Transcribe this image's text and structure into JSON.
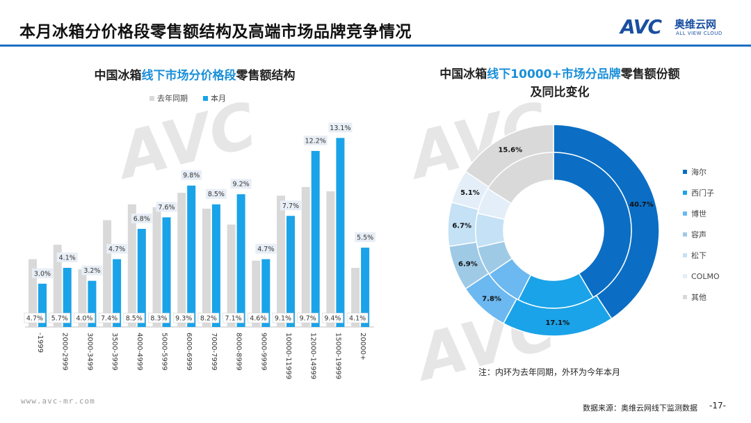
{
  "header": {
    "title": "本月冰箱分价格段零售额结构及高端市场品牌竞争情况",
    "logo_mark": "AVC",
    "logo_cn": "奥维云网",
    "logo_en": "ALL VIEW CLOUD"
  },
  "left_chart": {
    "title_pre": "中国冰箱",
    "title_hl": "线下市场分价格段",
    "title_post": "零售额结构"
  },
  "right_chart": {
    "title_pre": "中国冰箱",
    "title_hl": "线下10000+市场分品牌",
    "title_post": "零售额份额",
    "title_line2": "及同比变化"
  },
  "note": "注：内环为去年同期，外环为今年本月",
  "footer": {
    "url": "www.avc-mr.com",
    "source": "数据来源：奥维云网线下监测数据",
    "page": "-17-"
  },
  "colors": {
    "accent": "#1a6fc4",
    "bar_last_year": "#d9d9d9",
    "bar_this_month": "#1aa3e8"
  },
  "chart_data": [
    {
      "type": "bar",
      "categories": [
        "-1999",
        "2000-2999",
        "3000-3499",
        "3500-3999",
        "4000-4999",
        "5000-5999",
        "6000-6999",
        "7000-7999",
        "8000-8999",
        "9000-9999",
        "10000-11999",
        "12000-14999",
        "15000-19999",
        "20000+"
      ],
      "series": [
        {
          "name": "去年同期",
          "values": [
            4.7,
            5.7,
            4.0,
            7.4,
            8.5,
            8.3,
            9.3,
            8.2,
            7.1,
            4.6,
            9.1,
            9.7,
            9.4,
            4.1
          ],
          "labels": [
            "4.7%",
            "5.7%",
            "4.0%",
            "7.4%",
            "8.5%",
            "8.3%",
            "9.3%",
            "8.2%",
            "7.1%",
            "4.6%",
            "9.1%",
            "9.7%",
            "9.4%",
            "4.1%"
          ],
          "color": "#d9d9d9"
        },
        {
          "name": "本月",
          "values": [
            3.0,
            4.1,
            3.2,
            4.7,
            6.8,
            7.6,
            9.8,
            8.5,
            9.2,
            4.7,
            7.7,
            12.2,
            13.1,
            5.5
          ],
          "labels": [
            "3.0%",
            "4.1%",
            "3.2%",
            "4.7%",
            "6.8%",
            "7.6%",
            "9.8%",
            "8.5%",
            "9.2%",
            "4.7%",
            "7.7%",
            "12.2%",
            "13.1%",
            "5.5%"
          ],
          "color": "#1aa3e8"
        }
      ],
      "ylim": [
        0,
        13.5
      ],
      "grid": false,
      "legend": "top"
    },
    {
      "type": "pie",
      "subtype": "double-donut",
      "categories": [
        "海尔",
        "西门子",
        "博世",
        "容声",
        "松下",
        "COLMO",
        "其他"
      ],
      "colors": [
        "#0b6ec4",
        "#1aa3e8",
        "#6cb8f0",
        "#9ecae6",
        "#c4e1f5",
        "#e3eef8",
        "#d9d9d9"
      ],
      "series": [
        {
          "name": "外环",
          "values": [
            40.7,
            17.1,
            7.8,
            6.9,
            6.7,
            5.1,
            15.6
          ],
          "labels": [
            "40.7%",
            "17.1%",
            "7.8%",
            "6.9%",
            "6.7%",
            "5.1%",
            "15.6%"
          ]
        },
        {
          "name": "内环",
          "values": [
            41.5,
            16.0,
            8.0,
            6.0,
            7.0,
            5.5,
            16.0
          ]
        }
      ],
      "legend": "right"
    }
  ]
}
